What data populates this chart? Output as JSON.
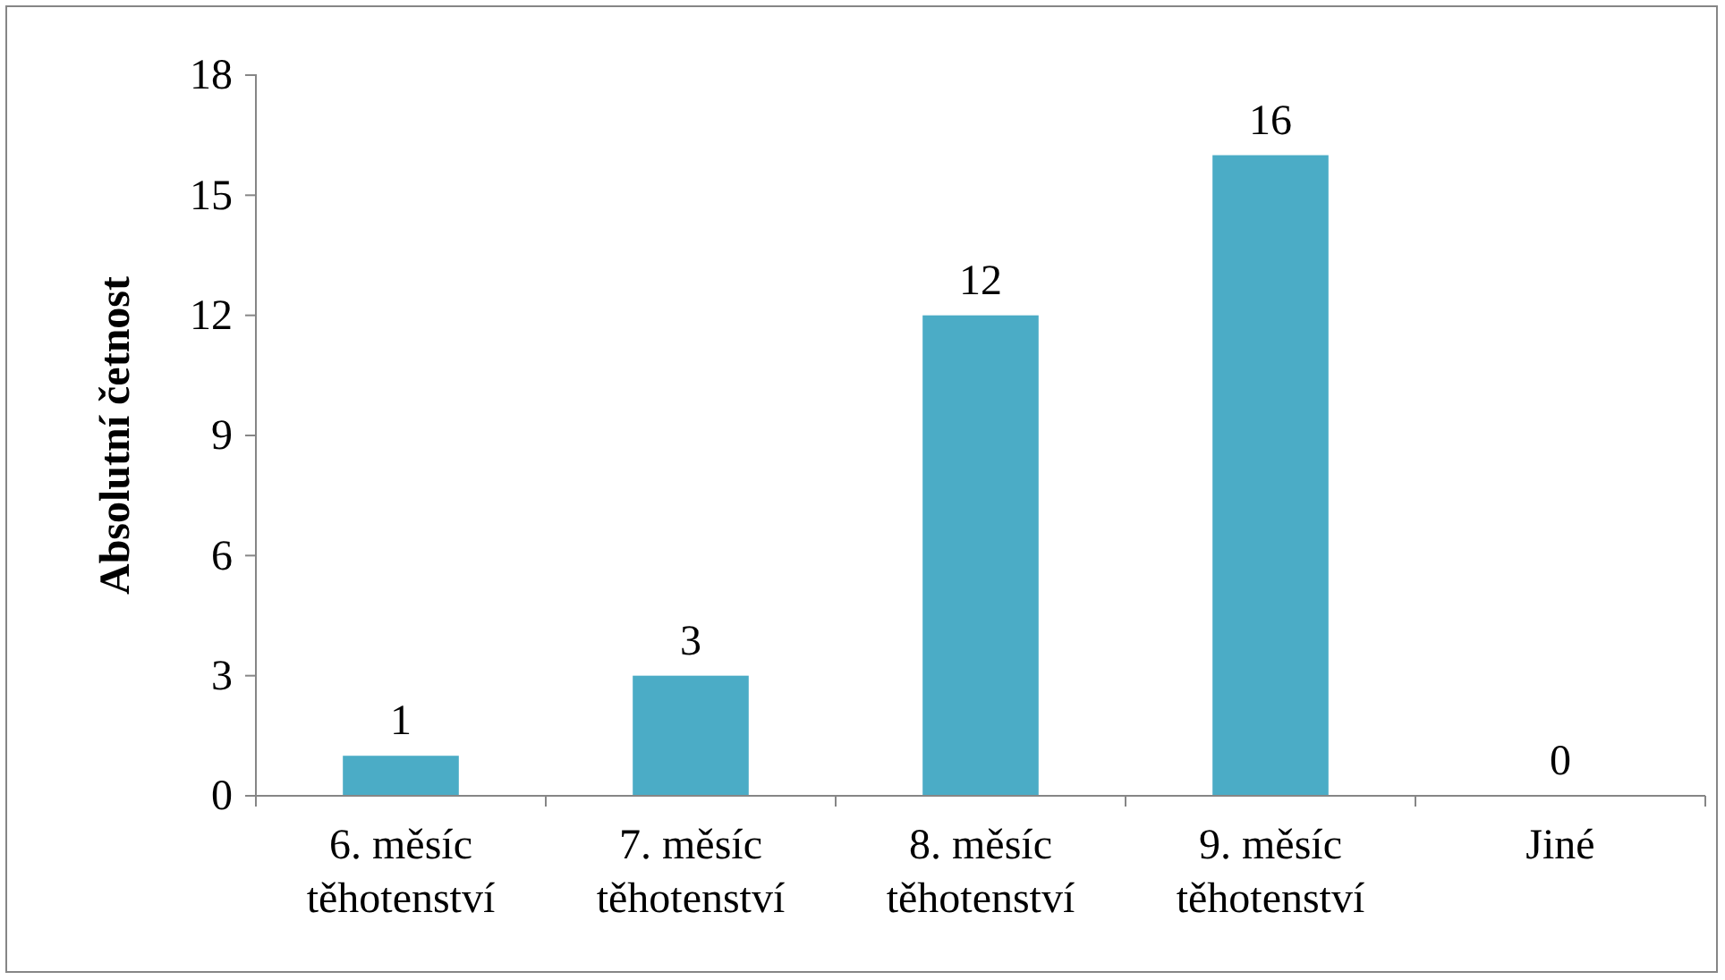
{
  "chart_data": {
    "type": "bar",
    "ylabel": "Absolutní četnost",
    "categories": [
      "6. měsíc těhotenství",
      "7. měsíc těhotenství",
      "8. měsíc těhotenství",
      "9. měsíc těhotenství",
      "Jiné"
    ],
    "values": [
      1,
      3,
      12,
      16,
      0
    ],
    "color": "#4bacc6",
    "ylim": [
      0,
      18
    ],
    "yticks": [
      0,
      3,
      6,
      9,
      12,
      15,
      18
    ],
    "data_labels": true
  }
}
